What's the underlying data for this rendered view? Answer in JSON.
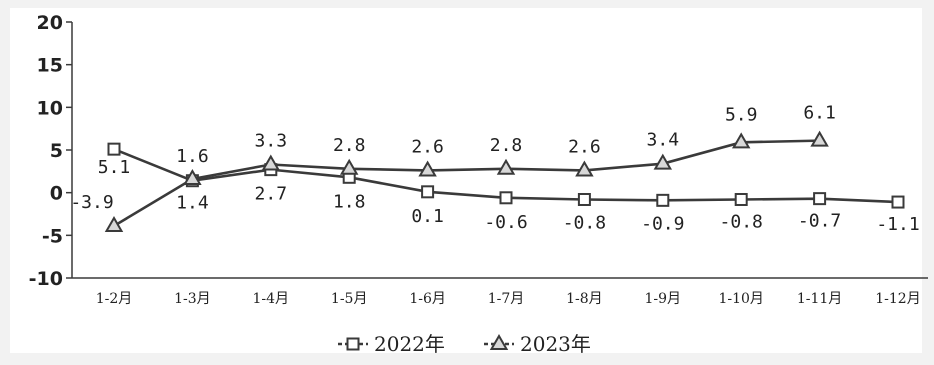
{
  "chart_data": {
    "type": "line",
    "categories": [
      "1-2月",
      "1-3月",
      "1-4月",
      "1-5月",
      "1-6月",
      "1-7月",
      "1-8月",
      "1-9月",
      "1-10月",
      "1-11月",
      "1-12月"
    ],
    "series": [
      {
        "name": "2022年",
        "marker": "square",
        "values": [
          5.1,
          1.4,
          2.7,
          1.8,
          0.1,
          -0.6,
          -0.8,
          -0.9,
          -0.8,
          -0.7,
          -1.1
        ],
        "labels": [
          "5.1",
          "1.4",
          "2.7",
          "1.8",
          "0.1",
          "-0.6",
          "-0.8",
          "-0.9",
          "-0.8",
          "-0.7",
          "-1.1"
        ]
      },
      {
        "name": "2023年",
        "marker": "triangle",
        "values": [
          -3.9,
          1.6,
          3.3,
          2.8,
          2.6,
          2.8,
          2.6,
          3.4,
          5.9,
          6.1,
          null
        ],
        "labels": [
          "-3.9",
          "1.6",
          "3.3",
          "2.8",
          "2.6",
          "2.8",
          "2.6",
          "3.4",
          "5.9",
          "6.1",
          null
        ]
      }
    ],
    "ylim": [
      -10,
      20
    ],
    "yticks": [
      20,
      15,
      10,
      5,
      0,
      -5,
      -10
    ],
    "ytick_labels": [
      "20",
      "15",
      "10",
      "5",
      "0",
      "-5",
      "-10"
    ],
    "grid": false,
    "legend_position": "bottom-center",
    "title": "",
    "xlabel": "",
    "ylabel": "",
    "colors": {
      "line": "#3a3a3a",
      "marker_fill": "#ffffff",
      "background": "#ffffff",
      "text": "#222222"
    }
  }
}
